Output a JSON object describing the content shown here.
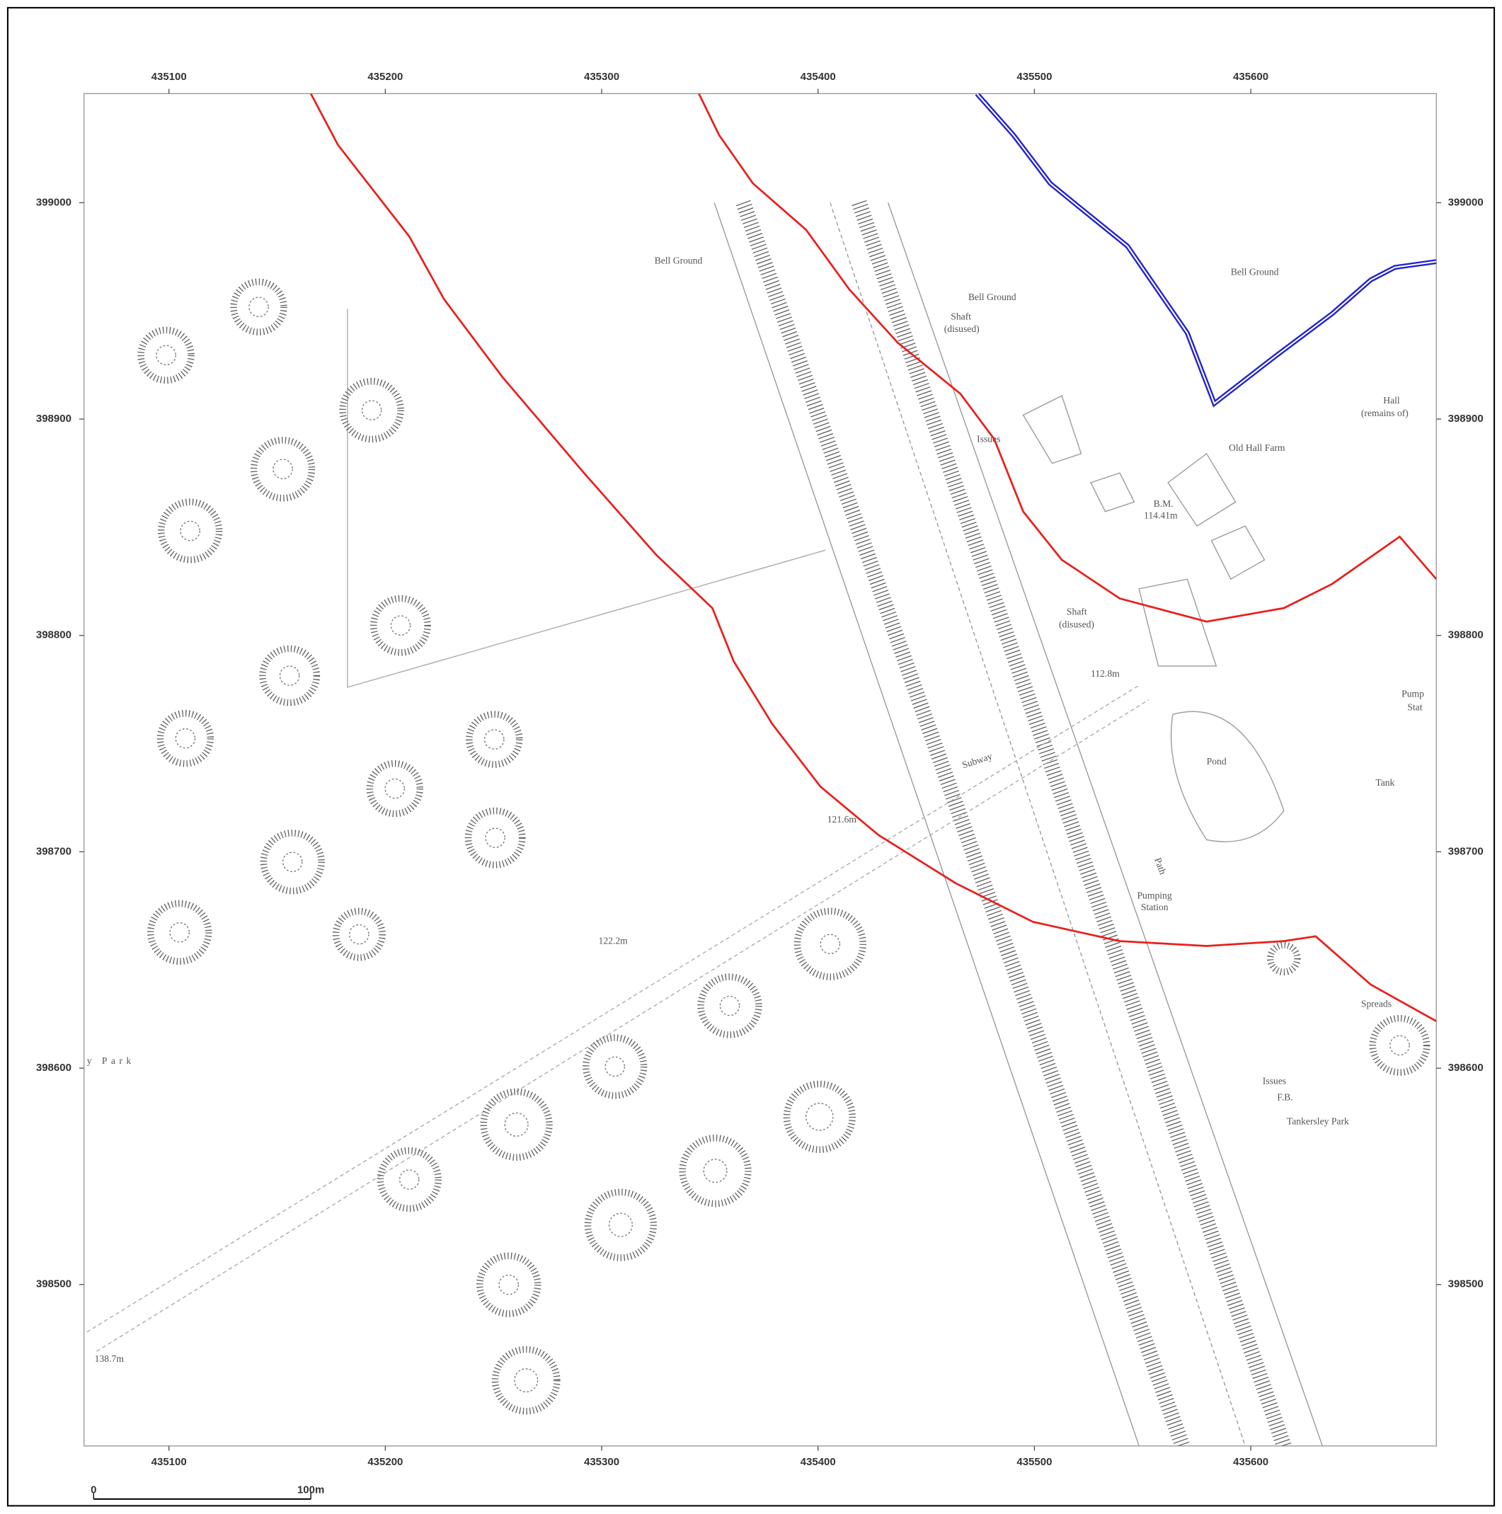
{
  "grid": {
    "eastings": [
      435100,
      435200,
      435300,
      435400,
      435500,
      435600
    ],
    "northings": [
      399000,
      398900,
      398800,
      398700,
      398600,
      398500
    ]
  },
  "labels": {
    "bell_ground_1": "Bell Ground",
    "bell_ground_2": "Bell Ground",
    "bell_ground_3": "Bell Ground",
    "shaft_1": "Shaft",
    "disused_1": "(disused)",
    "shaft_2": "Shaft",
    "disused_2": "(disused)",
    "hall": "Hall",
    "remains": "(remains of)",
    "old_hall_farm": "Old Hall Farm",
    "bm": "B.M.",
    "bm_height": "114.41m",
    "issues_1": "Issues",
    "height_112": "112.8m",
    "pump": "Pump",
    "station_part": "Stat",
    "subway": "Subway",
    "pond": "Pond",
    "height_121": "121.6m",
    "path": "Path",
    "tank": "Tank",
    "pumping": "Pumping",
    "station": "Station",
    "height_122": "122.2m",
    "spreads": "Spreads",
    "park": "y Park",
    "issues_2": "Issues",
    "fb": "F.B.",
    "tankersley_park": "Tankersley Park",
    "height_138": "138.7m"
  },
  "scale_bar": {
    "start": "0",
    "end": "100m"
  }
}
